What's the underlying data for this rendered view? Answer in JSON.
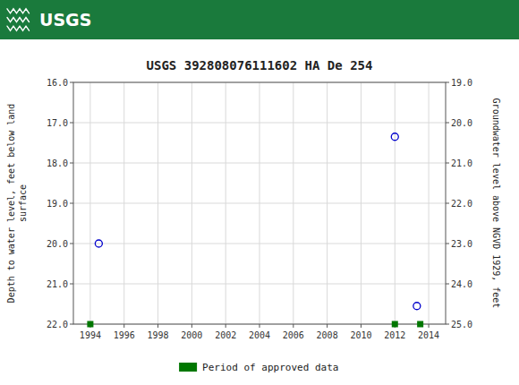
{
  "chart_data": {
    "type": "scatter",
    "title": "USGS 392808076111602 HA De 254",
    "annotations": [
      "USGS"
    ],
    "ylabel": "Depth to water level, feet below land\nsurface",
    "y2label": "Groundwater level above NGVD 1929, feet",
    "xlim": [
      1993,
      2015
    ],
    "xticks": [
      1994,
      1996,
      1998,
      2000,
      2002,
      2004,
      2006,
      2008,
      2010,
      2012,
      2014
    ],
    "ylim": [
      22.0,
      16.0
    ],
    "yticks": [
      {
        "value": 16.0,
        "label": "16.0"
      },
      {
        "value": 17.0,
        "label": "17.0"
      },
      {
        "value": 18.0,
        "label": "18.0"
      },
      {
        "value": 19.0,
        "label": "19.0"
      },
      {
        "value": 20.0,
        "label": "20.0"
      },
      {
        "value": 21.0,
        "label": "21.0"
      },
      {
        "value": 22.0,
        "label": "22.0"
      }
    ],
    "y2lim": [
      25.0,
      19.0
    ],
    "y2ticks": [
      {
        "value": 25.0,
        "label": "25.0"
      },
      {
        "value": 24.0,
        "label": "24.0"
      },
      {
        "value": 23.0,
        "label": "23.0"
      },
      {
        "value": 22.0,
        "label": "22.0"
      },
      {
        "value": 21.0,
        "label": "21.0"
      },
      {
        "value": 20.0,
        "label": "20.0"
      },
      {
        "value": 19.0,
        "label": "19.0"
      }
    ],
    "grid": true,
    "legend": "bottom",
    "series": [
      {
        "x": [
          1994.5,
          2012.0,
          2013.3
        ],
        "values": [
          20.0,
          17.35,
          21.55
        ],
        "color": "#0000cc",
        "marker": "circle"
      },
      {
        "name": "Period of approved data",
        "x": [
          1994.0,
          2012.0,
          2013.5
        ],
        "values": [
          22.0,
          22.0,
          22.0
        ],
        "color": "#007700",
        "marker": "square"
      }
    ]
  }
}
